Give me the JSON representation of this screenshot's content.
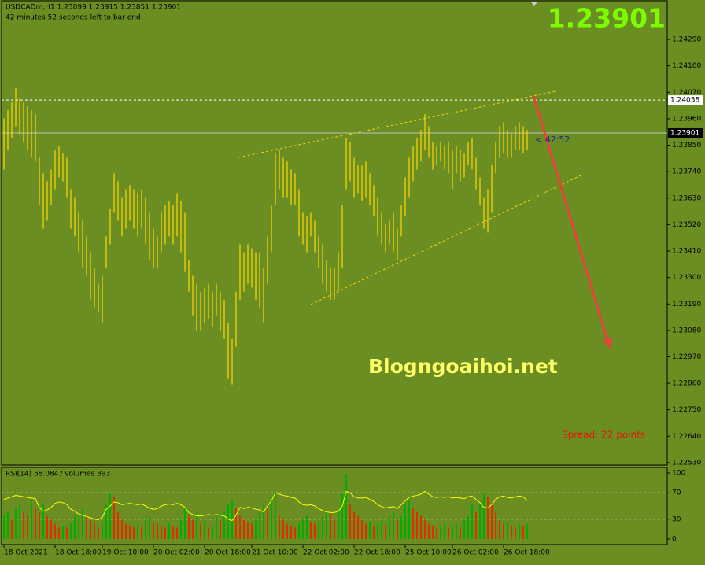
{
  "chart_data": [
    {
      "type": "ohlc",
      "title": "USDCADm,H1  1.23899 1.23915 1.23851 1.23901",
      "subtitle": "42 minutes 52 seconds left to bar end",
      "bid": 1.23901,
      "level": 1.24038,
      "countdown": "< 42:52",
      "watermark": "Blogngoaihoi.net",
      "spread": "Spread: 22 points",
      "color": "#ffd700",
      "grid": false,
      "ylim": [
        1.2252,
        1.24454
      ],
      "yticks": [
        {
          "value": 1.2429,
          "label": "1.24290"
        },
        {
          "value": 1.2418,
          "label": "1.24180"
        },
        {
          "value": 1.2407,
          "label": "1.24070"
        },
        {
          "value": 1.2396,
          "label": "1.23960"
        },
        {
          "value": 1.2385,
          "label": "1.23850"
        },
        {
          "value": 1.2374,
          "label": "1.23740"
        },
        {
          "value": 1.2363,
          "label": "1.23630"
        },
        {
          "value": 1.2352,
          "label": "1.23520"
        },
        {
          "value": 1.2341,
          "label": "1.23410"
        },
        {
          "value": 1.233,
          "label": "1.23300"
        },
        {
          "value": 1.2319,
          "label": "1.23190"
        },
        {
          "value": 1.2308,
          "label": "1.23080"
        },
        {
          "value": 1.2297,
          "label": "1.22970"
        },
        {
          "value": 1.2286,
          "label": "1.22860"
        },
        {
          "value": 1.2275,
          "label": "1.22750"
        },
        {
          "value": 1.2264,
          "label": "1.22640"
        },
        {
          "value": 1.2253,
          "label": "1.22530"
        }
      ],
      "xticks": [
        {
          "value": 0,
          "label": "18 Oct 2021"
        },
        {
          "value": 13,
          "label": "18 Oct 18:00"
        },
        {
          "value": 25,
          "label": "19 Oct 10:00"
        },
        {
          "value": 38,
          "label": "20 Oct 02:00"
        },
        {
          "value": 51,
          "label": "20 Oct 18:00"
        },
        {
          "value": 63,
          "label": "21 Oct 10:00"
        },
        {
          "value": 76,
          "label": "22 Oct 02:00"
        },
        {
          "value": 89,
          "label": "22 Oct 18:00"
        },
        {
          "value": 102,
          "label": "25 Oct 10:00"
        },
        {
          "value": 114,
          "label": "26 Oct 02:00"
        },
        {
          "value": 127,
          "label": "26 Oct 18:00"
        }
      ],
      "high": [
        1.23962,
        1.23995,
        1.24028,
        1.24087,
        1.24044,
        1.24028,
        1.24011,
        1.23995,
        1.23979,
        1.23798,
        1.23733,
        1.237,
        1.23749,
        1.23831,
        1.23848,
        1.23815,
        1.23798,
        1.23667,
        1.23634,
        1.23569,
        1.23536,
        1.23471,
        1.23405,
        1.2334,
        1.23274,
        1.23307,
        1.23471,
        1.23585,
        1.23733,
        1.237,
        1.23634,
        1.23667,
        1.23684,
        1.23667,
        1.23651,
        1.23667,
        1.23634,
        1.23569,
        1.23503,
        1.23471,
        1.23569,
        1.23602,
        1.23618,
        1.23602,
        1.23651,
        1.23618,
        1.23569,
        1.23372,
        1.23307,
        1.23274,
        1.23241,
        1.23258,
        1.23274,
        1.23241,
        1.23274,
        1.23241,
        1.23208,
        1.2311,
        1.23044,
        1.23241,
        1.23438,
        1.23405,
        1.23438,
        1.23421,
        1.23405,
        1.23405,
        1.2334,
        1.23471,
        1.23602,
        1.23815,
        1.23831,
        1.23798,
        1.23782,
        1.23749,
        1.23733,
        1.23667,
        1.23569,
        1.23553,
        1.23569,
        1.23536,
        1.23471,
        1.23438,
        1.23372,
        1.2334,
        1.2334,
        1.23405,
        1.23602,
        1.2388,
        1.23864,
        1.23798,
        1.23766,
        1.23766,
        1.23782,
        1.23733,
        1.23684,
        1.23634,
        1.23569,
        1.2352,
        1.23536,
        1.23569,
        1.23503,
        1.23602,
        1.23716,
        1.23798,
        1.23848,
        1.2388,
        1.23913,
        1.23979,
        1.23929,
        1.23864,
        1.23848,
        1.23864,
        1.23848,
        1.23864,
        1.23831,
        1.23848,
        1.23831,
        1.23815,
        1.23864,
        1.2388,
        1.23798,
        1.23716,
        1.23634,
        1.23667,
        1.23766,
        1.23864,
        1.23929,
        1.23946,
        1.23913,
        1.23897,
        1.23929,
        1.23946,
        1.23929,
        1.23913
      ],
      "low": [
        1.23749,
        1.23831,
        1.2388,
        1.23929,
        1.23897,
        1.23864,
        1.23831,
        1.23798,
        1.23782,
        1.23602,
        1.23503,
        1.23536,
        1.23602,
        1.23667,
        1.23716,
        1.237,
        1.23634,
        1.23503,
        1.23471,
        1.23405,
        1.2334,
        1.23307,
        1.23208,
        1.23176,
        1.23159,
        1.2311,
        1.2334,
        1.23438,
        1.23569,
        1.23536,
        1.23471,
        1.23503,
        1.23536,
        1.23503,
        1.23471,
        1.23503,
        1.23438,
        1.23372,
        1.2334,
        1.2334,
        1.23405,
        1.23438,
        1.23471,
        1.23438,
        1.23471,
        1.23405,
        1.23323,
        1.23241,
        1.23143,
        1.23077,
        1.23077,
        1.2311,
        1.23126,
        1.23094,
        1.23143,
        1.23077,
        1.23044,
        1.22881,
        1.22855,
        1.23012,
        1.23208,
        1.23241,
        1.23274,
        1.23258,
        1.23208,
        1.23176,
        1.2311,
        1.23274,
        1.23405,
        1.23602,
        1.23667,
        1.23634,
        1.23634,
        1.23602,
        1.23602,
        1.23471,
        1.23438,
        1.23405,
        1.23471,
        1.23405,
        1.2334,
        1.23274,
        1.23241,
        1.23208,
        1.23208,
        1.23241,
        1.2334,
        1.23667,
        1.237,
        1.23634,
        1.23651,
        1.23618,
        1.23634,
        1.23602,
        1.23553,
        1.23471,
        1.23438,
        1.23405,
        1.23438,
        1.23405,
        1.23372,
        1.23471,
        1.23553,
        1.23634,
        1.237,
        1.23749,
        1.23782,
        1.23831,
        1.23798,
        1.23749,
        1.23766,
        1.23782,
        1.23749,
        1.23733,
        1.23667,
        1.23733,
        1.237,
        1.23716,
        1.23766,
        1.23749,
        1.23667,
        1.23602,
        1.23503,
        1.23487,
        1.23569,
        1.23733,
        1.23798,
        1.23815,
        1.23798,
        1.23798,
        1.23831,
        1.23831,
        1.23815,
        1.23831
      ]
    },
    {
      "type": "rsi-volumes",
      "title": "RSI(14) 58.0847",
      "volume_label": "Volumes 393",
      "color": "#ffff00",
      "up_color": "#00b000",
      "down_color": "#e03000",
      "ylim": [
        0,
        100
      ],
      "yticks": [
        0,
        30,
        70,
        100
      ],
      "levels": [
        30,
        70
      ],
      "vlim": [
        0,
        1800
      ],
      "rsi": [
        60,
        62,
        64,
        66,
        65,
        64,
        63,
        62,
        61,
        48,
        42,
        44,
        48,
        54,
        56,
        55,
        52,
        45,
        42,
        38,
        36,
        34,
        32,
        30,
        29,
        33,
        45,
        50,
        56,
        55,
        52,
        53,
        54,
        53,
        52,
        53,
        50,
        47,
        45,
        46,
        50,
        52,
        53,
        52,
        54,
        52,
        48,
        40,
        37,
        35,
        35,
        36,
        37,
        36,
        37,
        36,
        35,
        30,
        28,
        36,
        48,
        46,
        48,
        47,
        45,
        44,
        41,
        50,
        58,
        70,
        68,
        66,
        65,
        63,
        62,
        56,
        52,
        51,
        52,
        50,
        46,
        43,
        41,
        40,
        40,
        42,
        50,
        72,
        70,
        64,
        62,
        62,
        63,
        60,
        57,
        52,
        49,
        47,
        48,
        49,
        46,
        52,
        58,
        63,
        65,
        66,
        68,
        72,
        68,
        64,
        63,
        64,
        63,
        64,
        62,
        63,
        62,
        61,
        64,
        65,
        60,
        55,
        48,
        47,
        52,
        60,
        64,
        65,
        63,
        62,
        64,
        65,
        64,
        58.0847
      ],
      "volumes": [
        600,
        700,
        500,
        800,
        900,
        700,
        600,
        1000,
        800,
        700,
        900,
        600,
        500,
        400,
        300,
        350,
        300,
        400,
        600,
        700,
        800,
        600,
        500,
        400,
        300,
        450,
        900,
        1200,
        1100,
        700,
        500,
        400,
        350,
        300,
        400,
        350,
        500,
        600,
        450,
        400,
        350,
        300,
        400,
        350,
        300,
        500,
        800,
        600,
        500,
        700,
        400,
        450,
        300,
        350,
        600,
        500,
        700,
        900,
        1000,
        800,
        600,
        500,
        450,
        400,
        500,
        700,
        900,
        800,
        1100,
        1200,
        600,
        500,
        400,
        350,
        300,
        400,
        500,
        600,
        450,
        400,
        500,
        600,
        700,
        650,
        500,
        800,
        1200,
        1700,
        900,
        700,
        600,
        500,
        400,
        450,
        350,
        400,
        500,
        350,
        600,
        700,
        500,
        600,
        900,
        1000,
        800,
        700,
        600,
        500,
        400,
        350,
        300,
        350,
        400,
        300,
        350,
        400,
        300,
        500,
        600,
        900,
        700,
        900,
        1200,
        1100,
        900,
        700,
        500,
        400,
        450,
        350,
        300,
        400,
        350,
        393
      ]
    }
  ]
}
